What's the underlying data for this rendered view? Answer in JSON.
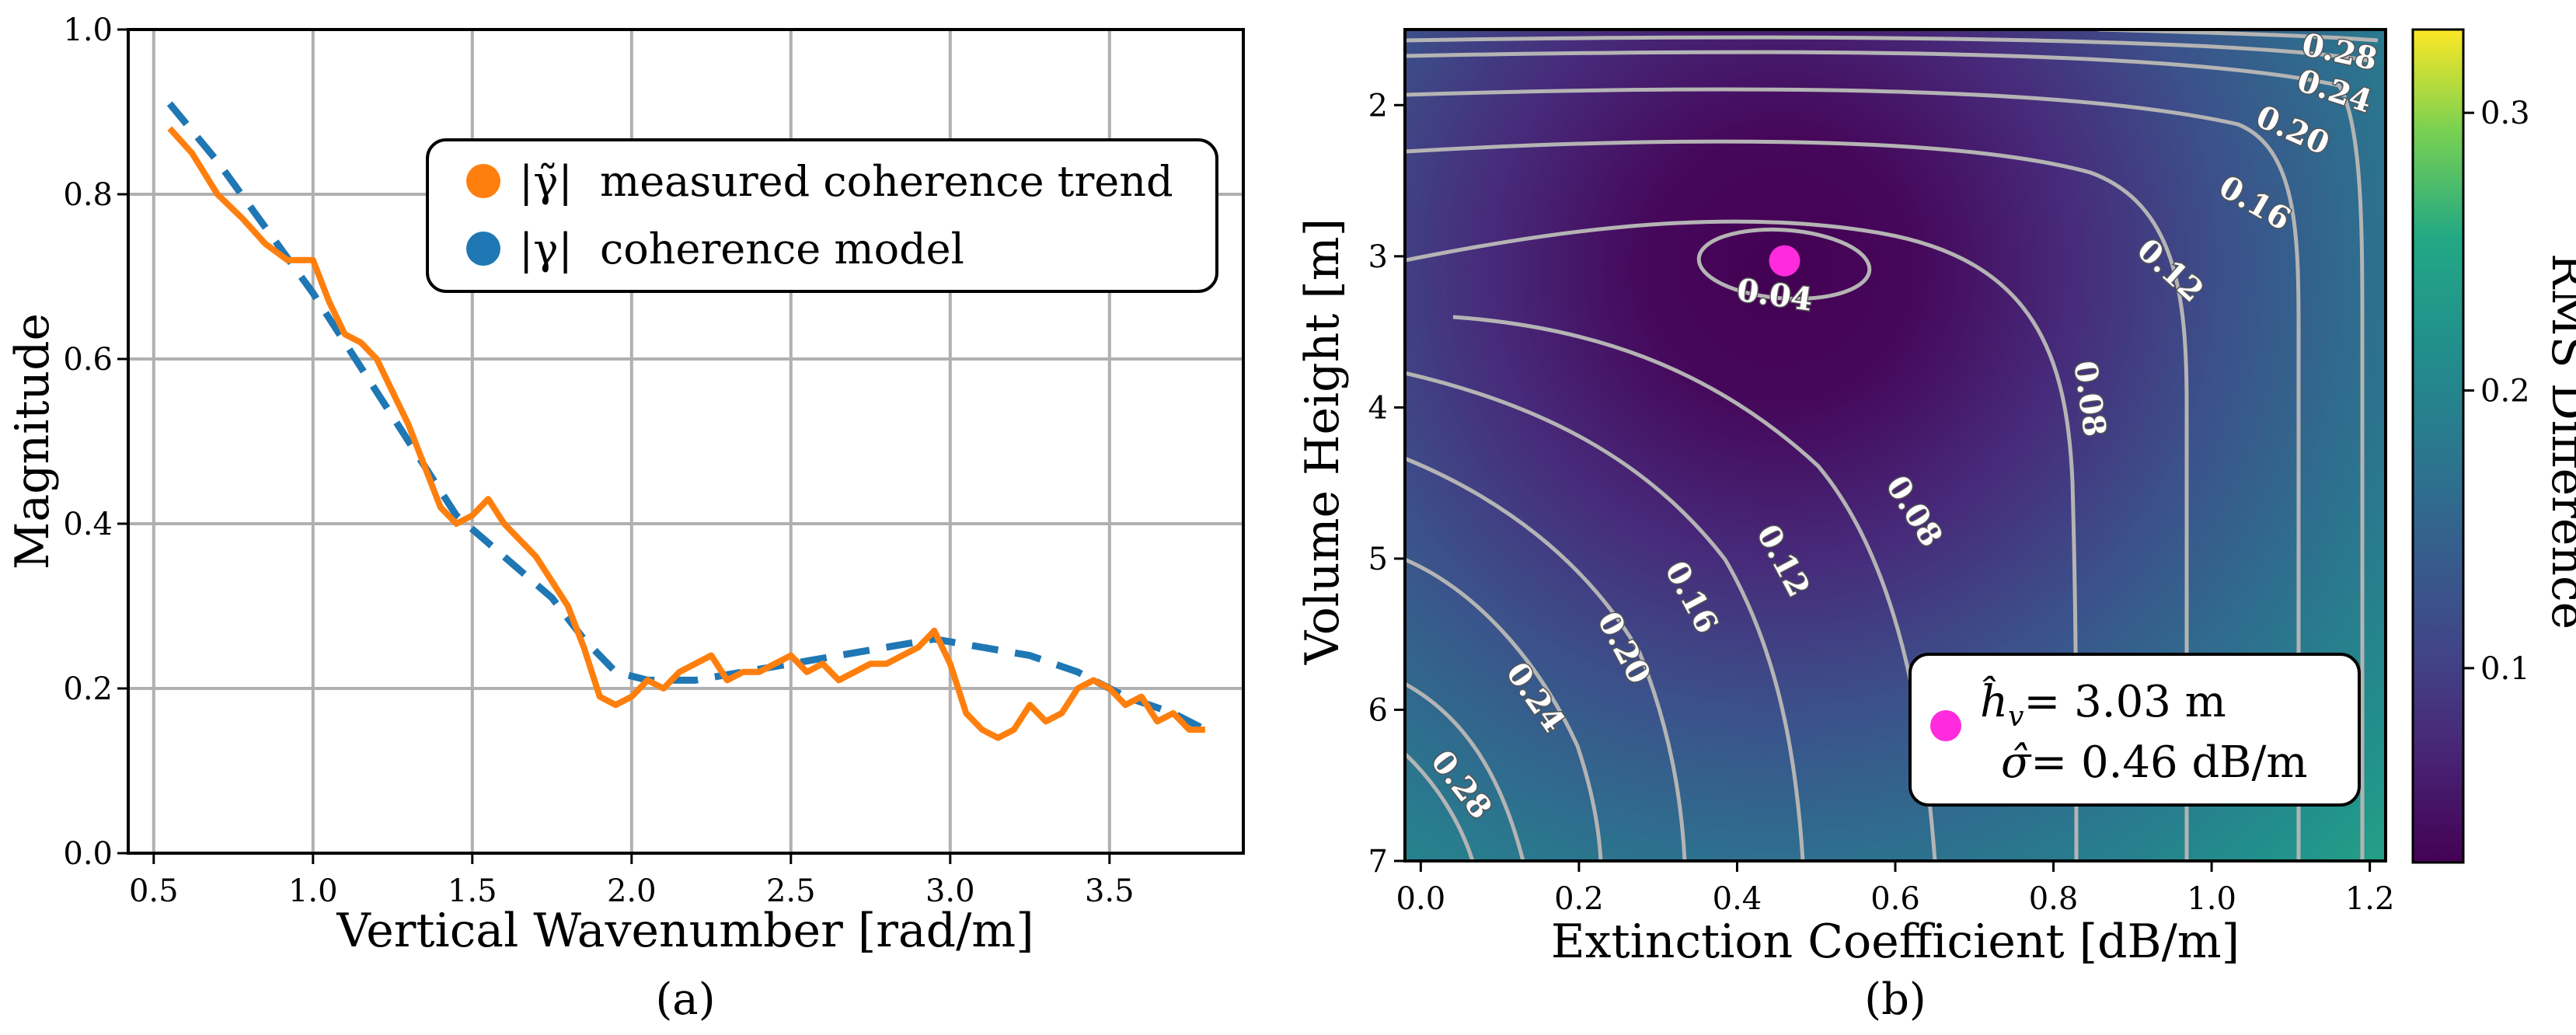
{
  "chart_data": [
    {
      "type": "line",
      "panel_label": "(a)",
      "xlabel": "Vertical Wavenumber [rad/m]",
      "ylabel": "Magnitude",
      "xlim": [
        0.42,
        3.92
      ],
      "ylim": [
        0.0,
        1.0
      ],
      "xticks": [
        "0.5",
        "1.0",
        "1.5",
        "2.0",
        "2.5",
        "3.0",
        "3.5"
      ],
      "yticks": [
        "0.0",
        "0.2",
        "0.4",
        "0.6",
        "0.8",
        "1.0"
      ],
      "grid": true,
      "legend_position": "top-right",
      "series": [
        {
          "name": "measured coherence trend",
          "symbol": "|γ̃|",
          "color": "#ff7f0e",
          "style": "solid",
          "x": [
            0.55,
            0.62,
            0.7,
            0.78,
            0.85,
            0.92,
            1.0,
            1.05,
            1.1,
            1.15,
            1.2,
            1.25,
            1.3,
            1.35,
            1.4,
            1.45,
            1.5,
            1.55,
            1.6,
            1.65,
            1.7,
            1.75,
            1.8,
            1.85,
            1.9,
            1.95,
            2.0,
            2.05,
            2.1,
            2.15,
            2.2,
            2.25,
            2.3,
            2.35,
            2.4,
            2.45,
            2.5,
            2.55,
            2.6,
            2.65,
            2.7,
            2.75,
            2.8,
            2.85,
            2.9,
            2.95,
            3.0,
            3.05,
            3.1,
            3.15,
            3.2,
            3.25,
            3.3,
            3.35,
            3.4,
            3.45,
            3.5,
            3.55,
            3.6,
            3.65,
            3.7,
            3.75,
            3.8
          ],
          "values": [
            0.88,
            0.85,
            0.8,
            0.77,
            0.74,
            0.72,
            0.72,
            0.67,
            0.63,
            0.62,
            0.6,
            0.56,
            0.52,
            0.47,
            0.42,
            0.4,
            0.41,
            0.43,
            0.4,
            0.38,
            0.36,
            0.33,
            0.3,
            0.25,
            0.19,
            0.18,
            0.19,
            0.21,
            0.2,
            0.22,
            0.23,
            0.24,
            0.21,
            0.22,
            0.22,
            0.23,
            0.24,
            0.22,
            0.23,
            0.21,
            0.22,
            0.23,
            0.23,
            0.24,
            0.25,
            0.27,
            0.23,
            0.17,
            0.15,
            0.14,
            0.15,
            0.18,
            0.16,
            0.17,
            0.2,
            0.21,
            0.2,
            0.18,
            0.19,
            0.16,
            0.17,
            0.15,
            0.15
          ]
        },
        {
          "name": "coherence model",
          "symbol": "|γ|",
          "color": "#1f77b4",
          "style": "dashed",
          "x": [
            0.55,
            0.7,
            0.85,
            1.0,
            1.15,
            1.3,
            1.45,
            1.6,
            1.75,
            1.85,
            1.95,
            2.05,
            2.2,
            2.35,
            2.5,
            2.65,
            2.8,
            2.95,
            3.1,
            3.25,
            3.4,
            3.55,
            3.7,
            3.8
          ],
          "values": [
            0.91,
            0.84,
            0.76,
            0.68,
            0.59,
            0.5,
            0.41,
            0.36,
            0.31,
            0.26,
            0.22,
            0.21,
            0.21,
            0.22,
            0.23,
            0.24,
            0.25,
            0.26,
            0.25,
            0.24,
            0.22,
            0.19,
            0.17,
            0.15
          ]
        }
      ]
    },
    {
      "type": "heatmap",
      "panel_label": "(b)",
      "xlabel": "Extinction Coefficient [dB/m]",
      "ylabel": "Volume Height [m]",
      "colorbar_label": "RMS Difference",
      "xlim": [
        -0.02,
        1.22
      ],
      "ylim": [
        1.5,
        7.0
      ],
      "xticks": [
        "0.0",
        "0.2",
        "0.4",
        "0.6",
        "0.8",
        "1.0",
        "1.2"
      ],
      "yticks": [
        "2",
        "3",
        "4",
        "5",
        "6",
        "7"
      ],
      "colorbar_range": [
        0.03,
        0.33
      ],
      "colorbar_ticks": [
        "0.1",
        "0.2",
        "0.3"
      ],
      "colormap": "viridis",
      "contour_labels": [
        "0.04",
        "0.08",
        "0.08",
        "0.12",
        "0.12",
        "0.16",
        "0.16",
        "0.20",
        "0.20",
        "0.24",
        "0.24",
        "0.28",
        "0.28"
      ],
      "contour_color": "#bbbbbb",
      "estimate": {
        "extinction": 0.46,
        "height": 3.03,
        "color": "#ff2bdc",
        "height_text": "= 3.03 m",
        "sigma_text": "= 0.46 dB/m"
      }
    }
  ]
}
